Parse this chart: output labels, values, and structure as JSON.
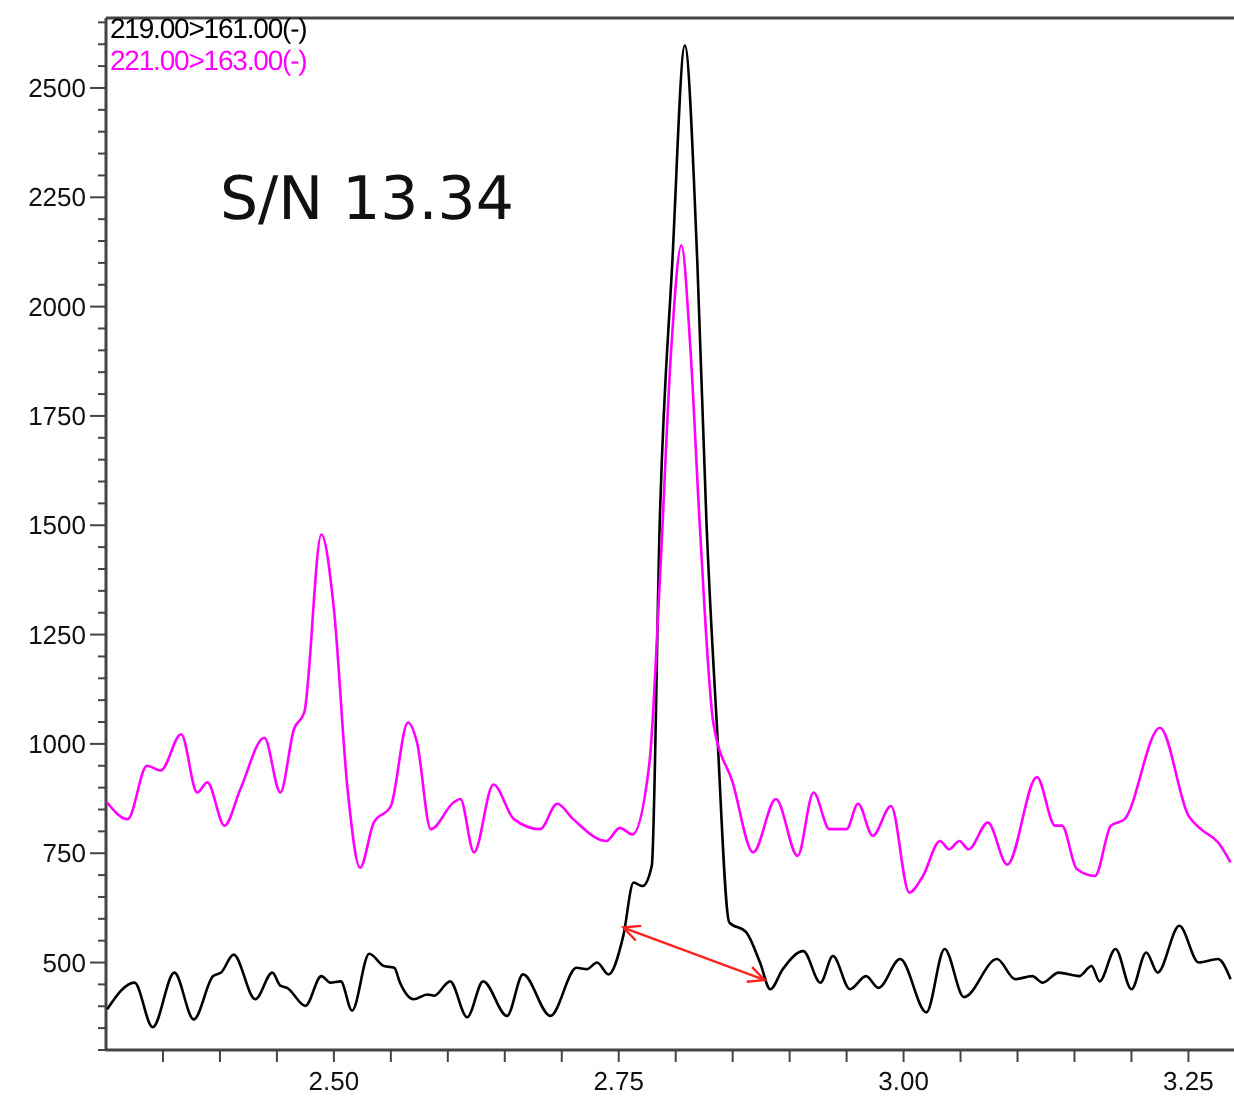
{
  "chart_data": {
    "type": "line",
    "xlim": [
      2.3,
      3.29
    ],
    "ylim": [
      300,
      2660
    ],
    "xticks": [
      {
        "value": 2.35,
        "label": null
      },
      {
        "value": 2.4,
        "label": null
      },
      {
        "value": 2.45,
        "label": null
      },
      {
        "value": 2.5,
        "label": "2.50"
      },
      {
        "value": 2.55,
        "label": null
      },
      {
        "value": 2.6,
        "label": null
      },
      {
        "value": 2.65,
        "label": null
      },
      {
        "value": 2.7,
        "label": null
      },
      {
        "value": 2.75,
        "label": "2.75"
      },
      {
        "value": 2.8,
        "label": null
      },
      {
        "value": 2.85,
        "label": null
      },
      {
        "value": 2.9,
        "label": null
      },
      {
        "value": 2.95,
        "label": null
      },
      {
        "value": 3,
        "label": "3.00"
      },
      {
        "value": 3.05,
        "label": null
      },
      {
        "value": 3.1,
        "label": null
      },
      {
        "value": 3.15,
        "label": null
      },
      {
        "value": 3.2,
        "label": null
      },
      {
        "value": 3.25,
        "label": "3.25"
      }
    ],
    "yticks": [
      {
        "value": 300,
        "label": null
      },
      {
        "value": 350,
        "label": null
      },
      {
        "value": 400,
        "label": null
      },
      {
        "value": 450,
        "label": null
      },
      500,
      {
        "value": 550,
        "label": null
      },
      {
        "value": 600,
        "label": null
      },
      {
        "value": 650,
        "label": null
      },
      {
        "value": 700,
        "label": null
      },
      750,
      {
        "value": 800,
        "label": null
      },
      {
        "value": 850,
        "label": null
      },
      {
        "value": 900,
        "label": null
      },
      {
        "value": 950,
        "label": null
      },
      1000,
      {
        "value": 1050,
        "label": null
      },
      {
        "value": 1100,
        "label": null
      },
      {
        "value": 1150,
        "label": null
      },
      {
        "value": 1200,
        "label": null
      },
      1250,
      {
        "value": 1300,
        "label": null
      },
      {
        "value": 1350,
        "label": null
      },
      {
        "value": 1400,
        "label": null
      },
      {
        "value": 1450,
        "label": null
      },
      1500,
      {
        "value": 1550,
        "label": null
      },
      {
        "value": 1600,
        "label": null
      },
      {
        "value": 1650,
        "label": null
      },
      {
        "value": 1700,
        "label": null
      },
      1750,
      {
        "value": 1800,
        "label": null
      },
      {
        "value": 1850,
        "label": null
      },
      {
        "value": 1900,
        "label": null
      },
      {
        "value": 1950,
        "label": null
      },
      2000,
      {
        "value": 2050,
        "label": null
      },
      {
        "value": 2100,
        "label": null
      },
      {
        "value": 2150,
        "label": null
      },
      {
        "value": 2200,
        "label": null
      },
      2250,
      {
        "value": 2300,
        "label": null
      },
      {
        "value": 2350,
        "label": null
      },
      {
        "value": 2400,
        "label": null
      },
      {
        "value": 2450,
        "label": null
      },
      2500,
      {
        "value": 2550,
        "label": null
      },
      {
        "value": 2600,
        "label": null
      },
      {
        "value": 2650,
        "label": null
      }
    ],
    "grid": false,
    "legend": "top left",
    "marker": "none",
    "line_style": "solid",
    "annotations": [
      "S/N 13.34"
    ],
    "series": [
      {
        "name": "219.00>161.00(-)",
        "color": "#000000",
        "x": [
          2.301,
          2.325,
          2.341,
          2.36,
          2.377,
          2.394,
          2.401,
          2.412,
          2.431,
          2.446,
          2.453,
          2.459,
          2.475,
          2.489,
          2.497,
          2.506,
          2.516,
          2.531,
          2.544,
          2.553,
          2.558,
          2.57,
          2.582,
          2.588,
          2.602,
          2.617,
          2.631,
          2.652,
          2.666,
          2.69,
          2.713,
          2.722,
          2.731,
          2.741,
          2.754,
          2.763,
          2.771,
          2.779,
          2.786,
          2.797,
          2.808,
          2.819,
          2.827,
          2.836,
          2.847,
          2.862,
          2.874,
          2.883,
          2.894,
          2.912,
          2.927,
          2.938,
          2.953,
          2.967,
          2.978,
          2.997,
          3.02,
          3.036,
          3.053,
          3.082,
          3.098,
          3.113,
          3.122,
          3.136,
          3.154,
          3.165,
          3.172,
          3.186,
          3.2,
          3.213,
          3.223,
          3.242,
          3.259,
          3.276,
          3.287
        ],
        "values": [
          393,
          454,
          352,
          477,
          370,
          469,
          477,
          518,
          416,
          477,
          447,
          442,
          401,
          469,
          454,
          457,
          390,
          520,
          492,
          488,
          454,
          416,
          427,
          424,
          457,
          375,
          457,
          378,
          473,
          378,
          488,
          485,
          500,
          473,
          561,
          683,
          675,
          721,
          1507,
          2100,
          2597,
          2100,
          1507,
          1049,
          592,
          569,
          500,
          439,
          485,
          526,
          454,
          515,
          439,
          469,
          442,
          508,
          386,
          531,
          421,
          508,
          462,
          469,
          454,
          477,
          469,
          492,
          457,
          531,
          439,
          523,
          477,
          584,
          500,
          508,
          462
        ]
      },
      {
        "name": "221.00>163.00(-)",
        "color": "#ff00ff",
        "x": [
          2.301,
          2.319,
          2.336,
          2.348,
          2.366,
          2.38,
          2.389,
          2.404,
          2.418,
          2.439,
          2.453,
          2.465,
          2.474,
          2.489,
          2.5,
          2.512,
          2.523,
          2.535,
          2.55,
          2.565,
          2.573,
          2.585,
          2.605,
          2.611,
          2.623,
          2.64,
          2.658,
          2.681,
          2.696,
          2.71,
          2.739,
          2.751,
          2.762,
          2.777,
          2.786,
          2.796,
          2.805,
          2.813,
          2.821,
          2.833,
          2.85,
          2.868,
          2.888,
          2.907,
          2.921,
          2.935,
          2.95,
          2.96,
          2.973,
          2.989,
          3.005,
          3.017,
          3.032,
          3.04,
          3.049,
          3.057,
          3.074,
          3.091,
          3.117,
          3.133,
          3.139,
          3.152,
          3.168,
          3.182,
          3.194,
          3.225,
          3.25,
          3.261,
          3.276,
          3.287
        ],
        "values": [
          866,
          828,
          950,
          939,
          1022,
          889,
          912,
          813,
          897,
          1014,
          889,
          1034,
          1072,
          1479,
          1309,
          897,
          717,
          820,
          858,
          1049,
          1003,
          805,
          866,
          874,
          752,
          907,
          828,
          805,
          863,
          828,
          778,
          808,
          793,
          958,
          1370,
          1900,
          2140,
          1900,
          1507,
          1049,
          912,
          752,
          874,
          744,
          889,
          805,
          805,
          863,
          790,
          858,
          660,
          698,
          778,
          759,
          778,
          759,
          820,
          724,
          924,
          813,
          813,
          714,
          698,
          813,
          828,
          1037,
          836,
          805,
          775,
          729
        ]
      }
    ]
  }
}
